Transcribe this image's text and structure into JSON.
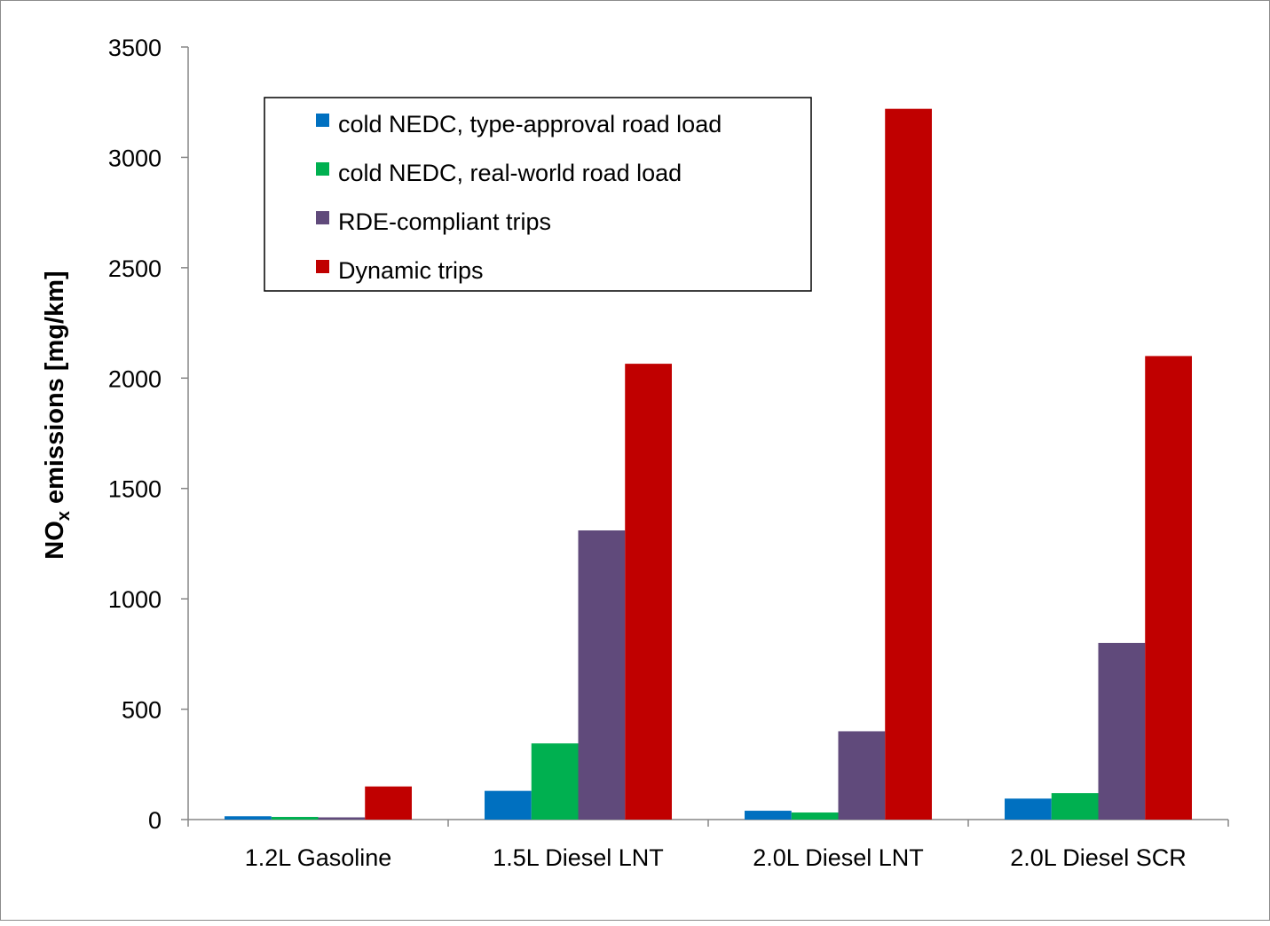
{
  "chart_data": {
    "type": "bar",
    "title": "",
    "xlabel": "",
    "ylabel": "NOx emissions [mg/km]",
    "ylabel_parts": {
      "main": "NO",
      "sub": "x",
      "rest": " emissions [mg/km]"
    },
    "ylim": [
      0,
      3500
    ],
    "yticks": [
      0,
      500,
      1000,
      1500,
      2000,
      2500,
      3000,
      3500
    ],
    "categories": [
      "1.2L Gasoline",
      "1.5L Diesel LNT",
      "2.0L Diesel LNT",
      "2.0L Diesel SCR"
    ],
    "series": [
      {
        "name": "cold NEDC, type-approval road load",
        "color": "#0070c0",
        "values": [
          15,
          130,
          40,
          95
        ]
      },
      {
        "name": "cold NEDC, real-world road load",
        "color": "#00b050",
        "values": [
          12,
          345,
          32,
          120
        ]
      },
      {
        "name": "RDE-compliant trips",
        "color": "#604a7b",
        "values": [
          10,
          1310,
          400,
          800
        ]
      },
      {
        "name": "Dynamic trips",
        "color": "#c00000",
        "values": [
          150,
          2065,
          3220,
          2100
        ]
      }
    ],
    "grid": false,
    "legend_position": "top-left"
  }
}
